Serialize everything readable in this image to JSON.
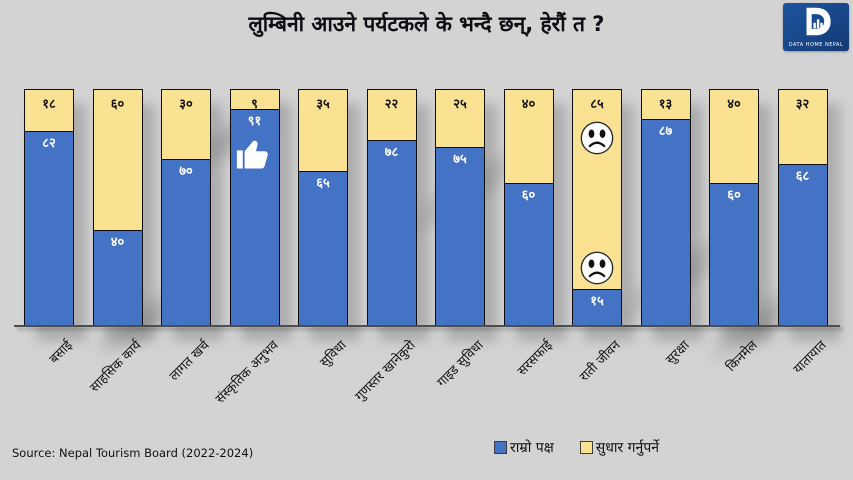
{
  "title": "लुम्बिनी आउने पर्यटकले के भन्दै छन्, हेरौं त ?",
  "logo": {
    "brand": "DATA HOME NEPAL"
  },
  "source": "Source:  Nepal Tourism Board (2022-2024)",
  "legend": [
    {
      "label": "राम्रो पक्ष",
      "color": "#4472C4"
    },
    {
      "label": "सुधार गर्नुपर्ने",
      "color": "#FBE192"
    }
  ],
  "colors": {
    "good": "#4472C4",
    "improve": "#FBE192",
    "background": "#D3D3D3",
    "bar_border": "#0D0D0D"
  },
  "chart_data": {
    "type": "bar",
    "subtype": "stacked-100-percent",
    "title": "लुम्बिनी आउने पर्यटकले के भन्दै छन्, हेरौं त ?",
    "unit": "percent",
    "ylim": [
      0,
      100
    ],
    "grid": false,
    "legend_position": "bottom",
    "categories": [
      "बसाई",
      "साहसिक कार्य",
      "लागत खर्च",
      "संस्कृतिक अनुभव",
      "सुविधा",
      "गुणस्तर खानेकुरो",
      "गाइड सुविधा",
      "सरसफाई",
      "राती जीवन",
      "सुरक्षा",
      "किनमेल",
      "यातायात"
    ],
    "series": [
      {
        "name": "राम्रो पक्ष",
        "color": "#4472C4",
        "values": [
          82,
          40,
          70,
          91,
          65,
          78,
          75,
          60,
          15,
          87,
          60,
          68
        ]
      },
      {
        "name": "सुधार गर्नुपर्ने",
        "color": "#FBE192",
        "values": [
          18,
          60,
          30,
          9,
          35,
          22,
          25,
          40,
          85,
          13,
          40,
          32
        ]
      }
    ],
    "bars": [
      {
        "category": "बसाई",
        "good": 82,
        "improve": 18,
        "good_label": "८२",
        "improve_label": "१८"
      },
      {
        "category": "साहसिक कार्य",
        "good": 40,
        "improve": 60,
        "good_label": "४०",
        "improve_label": "६०"
      },
      {
        "category": "लागत खर्च",
        "good": 70,
        "improve": 30,
        "good_label": "७०",
        "improve_label": "३०"
      },
      {
        "category": "संस्कृतिक अनुभव",
        "good": 91,
        "improve": 9,
        "good_label": "९१",
        "improve_label": "९",
        "icon": "thumbs-up-icon"
      },
      {
        "category": "सुविधा",
        "good": 65,
        "improve": 35,
        "good_label": "६५",
        "improve_label": "३५"
      },
      {
        "category": "गुणस्तर खानेकुरो",
        "good": 78,
        "improve": 22,
        "good_label": "७८",
        "improve_label": "२२"
      },
      {
        "category": "गाइड सुविधा",
        "good": 75,
        "improve": 25,
        "good_label": "७५",
        "improve_label": "२५"
      },
      {
        "category": "सरसफाई",
        "good": 60,
        "improve": 40,
        "good_label": "६०",
        "improve_label": "४०"
      },
      {
        "category": "राती जीवन",
        "good": 15,
        "improve": 85,
        "good_label": "१५",
        "improve_label": "८५",
        "icon": "sad-face-icon",
        "sad_faces": 2
      },
      {
        "category": "सुरक्षा",
        "good": 87,
        "improve": 13,
        "good_label": "८७",
        "improve_label": "१३"
      },
      {
        "category": "किनमेल",
        "good": 60,
        "improve": 40,
        "good_label": "६०",
        "improve_label": "४०"
      },
      {
        "category": "यातायात",
        "good": 68,
        "improve": 32,
        "good_label": "६८",
        "improve_label": "३२"
      }
    ],
    "annotations": [
      {
        "icon": "thumbs-up-icon",
        "category": "संस्कृतिक अनुभव",
        "segment": "राम्रो पक्ष"
      },
      {
        "icon": "sad-face-icon",
        "category": "राती जीवन",
        "segment": "सुधार गर्नुपर्ने",
        "count": 2
      }
    ]
  }
}
